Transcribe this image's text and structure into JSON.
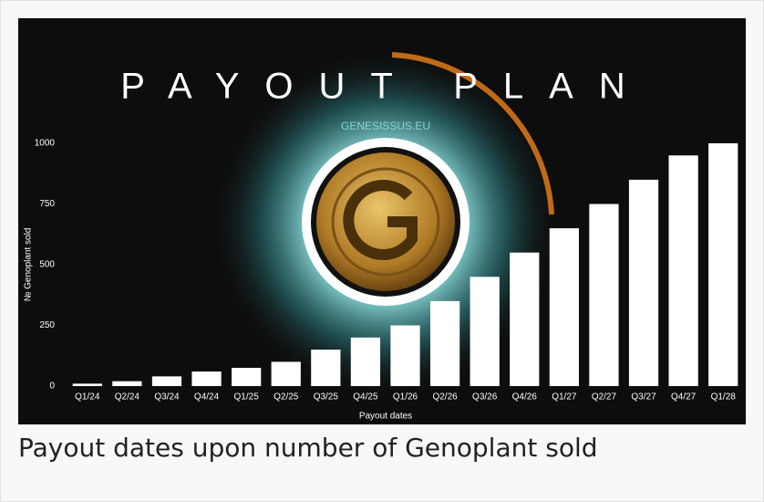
{
  "chart_data": {
    "type": "bar",
    "title": "PAYOUT PLAN",
    "subtitle": "GENESISSUS.EU",
    "x_label": "Payout dates",
    "y_label": "№ Genoplant sold",
    "categories": [
      "Q1/24",
      "Q2/24",
      "Q3/24",
      "Q4/24",
      "Q1/25",
      "Q2/25",
      "Q3/25",
      "Q4/25",
      "Q1/26",
      "Q2/26",
      "Q3/26",
      "Q4/26",
      "Q1/27",
      "Q2/27",
      "Q3/27",
      "Q4/27",
      "Q1/28"
    ],
    "values": [
      10,
      20,
      40,
      60,
      75,
      100,
      150,
      200,
      250,
      350,
      450,
      550,
      650,
      750,
      850,
      950,
      1000
    ],
    "color": "#ffffff",
    "ylim": [
      0,
      1000
    ],
    "yticks": [
      0,
      250,
      500,
      750,
      1000
    ],
    "grid": false
  },
  "caption": "Payout dates upon number of Genoplant sold"
}
